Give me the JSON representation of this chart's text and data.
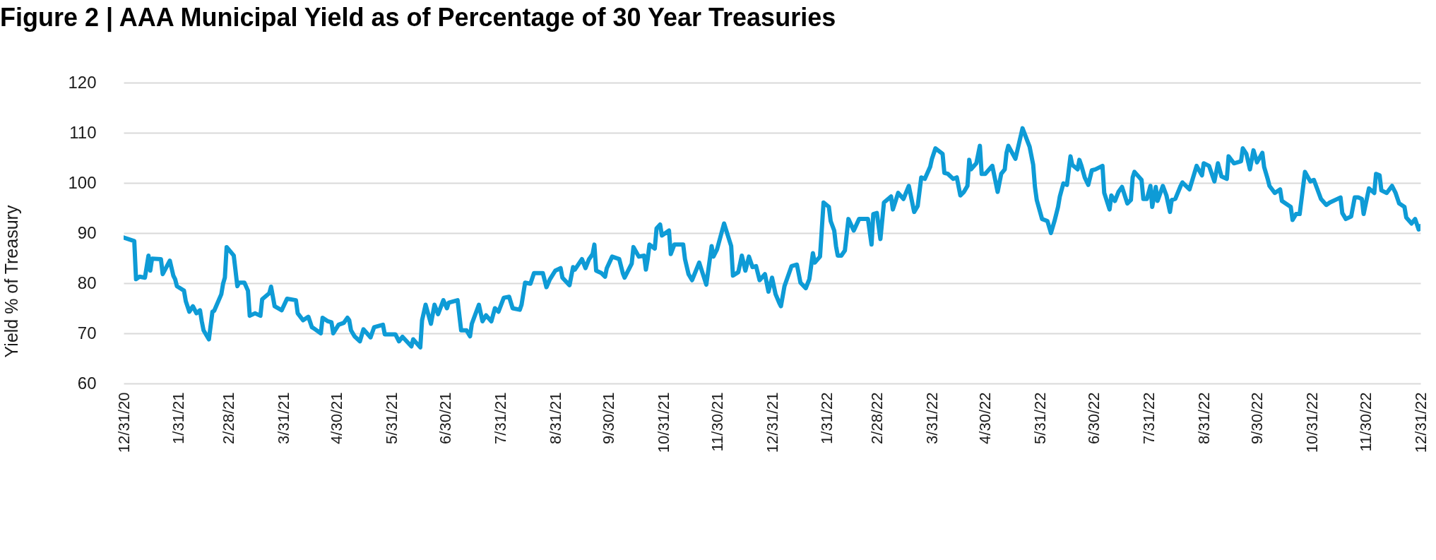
{
  "chart_data": {
    "type": "line",
    "title": "Figure 2 | AAA Municipal Yield as of Percentage of 30 Year Treasuries",
    "ylabel": "Yield % of Treasury",
    "x": [
      "2020-12-31",
      "2021-01-06",
      "2021-01-07",
      "2021-01-09",
      "2021-01-12",
      "2021-01-14",
      "2021-01-15",
      "2021-01-16",
      "2021-01-21",
      "2021-01-22",
      "2021-01-26",
      "2021-01-28",
      "2021-01-29",
      "2021-01-30",
      "2021-02-03",
      "2021-02-04",
      "2021-02-06",
      "2021-02-08",
      "2021-02-10",
      "2021-02-12",
      "2021-02-13",
      "2021-02-14",
      "2021-02-17",
      "2021-02-19",
      "2021-02-20",
      "2021-02-24",
      "2021-02-25",
      "2021-02-26",
      "2021-02-27",
      "2021-03-03",
      "2021-03-04",
      "2021-03-05",
      "2021-03-06",
      "2021-03-09",
      "2021-03-11",
      "2021-03-12",
      "2021-03-15",
      "2021-03-18",
      "2021-03-19",
      "2021-03-23",
      "2021-03-24",
      "2021-03-26",
      "2021-03-30",
      "2021-04-02",
      "2021-04-07",
      "2021-04-08",
      "2021-04-11",
      "2021-04-14",
      "2021-04-16",
      "2021-04-17",
      "2021-04-21",
      "2021-04-22",
      "2021-04-25",
      "2021-04-27",
      "2021-04-28",
      "2021-05-01",
      "2021-05-04",
      "2021-05-06",
      "2021-05-07",
      "2021-05-08",
      "2021-05-10",
      "2021-05-13",
      "2021-05-15",
      "2021-05-19",
      "2021-05-21",
      "2021-05-26",
      "2021-05-27",
      "2021-06-02",
      "2021-06-04",
      "2021-06-06",
      "2021-06-11",
      "2021-06-12",
      "2021-06-16",
      "2021-06-17",
      "2021-06-19",
      "2021-06-22",
      "2021-06-24",
      "2021-06-26",
      "2021-06-29",
      "2021-07-01",
      "2021-07-02",
      "2021-07-07",
      "2021-07-09",
      "2021-07-12",
      "2021-07-14",
      "2021-07-15",
      "2021-07-19",
      "2021-07-21",
      "2021-07-23",
      "2021-07-26",
      "2021-07-28",
      "2021-07-30",
      "2021-08-02",
      "2021-08-05",
      "2021-08-07",
      "2021-08-11",
      "2021-08-12",
      "2021-08-14",
      "2021-08-17",
      "2021-08-19",
      "2021-08-24",
      "2021-08-26",
      "2021-08-28",
      "2021-08-31",
      "2021-09-03",
      "2021-09-04",
      "2021-09-08",
      "2021-09-10",
      "2021-09-11",
      "2021-09-15",
      "2021-09-17",
      "2021-09-19",
      "2021-09-21",
      "2021-09-22",
      "2021-09-23",
      "2021-09-26",
      "2021-09-28",
      "2021-09-29",
      "2021-10-02",
      "2021-10-06",
      "2021-10-08",
      "2021-10-09",
      "2021-10-13",
      "2021-10-14",
      "2021-10-17",
      "2021-10-20",
      "2021-10-21",
      "2021-10-22",
      "2021-10-23",
      "2021-10-26",
      "2021-10-27",
      "2021-10-29",
      "2021-10-30",
      "2021-11-03",
      "2021-11-04",
      "2021-11-06",
      "2021-11-11",
      "2021-11-12",
      "2021-11-14",
      "2021-11-16",
      "2021-11-20",
      "2021-11-24",
      "2021-11-27",
      "2021-11-28",
      "2021-11-30",
      "2021-12-04",
      "2021-12-08",
      "2021-12-09",
      "2021-12-12",
      "2021-12-14",
      "2021-12-16",
      "2021-12-18",
      "2021-12-20",
      "2021-12-22",
      "2021-12-24",
      "2021-12-27",
      "2021-12-29",
      "2021-12-31",
      "2022-01-02",
      "2022-01-04",
      "2022-01-05",
      "2022-01-07",
      "2022-01-11",
      "2022-01-14",
      "2022-01-16",
      "2022-01-19",
      "2022-01-21",
      "2022-01-22",
      "2022-01-23",
      "2022-01-24",
      "2022-01-27",
      "2022-01-29",
      "2022-02-01",
      "2022-02-02",
      "2022-02-04",
      "2022-02-05",
      "2022-02-06",
      "2022-02-08",
      "2022-02-10",
      "2022-02-12",
      "2022-02-15",
      "2022-02-18",
      "2022-02-23",
      "2022-02-25",
      "2022-02-26",
      "2022-02-28",
      "2022-03-02",
      "2022-03-04",
      "2022-03-08",
      "2022-03-09",
      "2022-03-12",
      "2022-03-15",
      "2022-03-18",
      "2022-03-21",
      "2022-03-23",
      "2022-03-25",
      "2022-03-27",
      "2022-03-30",
      "2022-03-31",
      "2022-04-02",
      "2022-04-06",
      "2022-04-07",
      "2022-04-09",
      "2022-04-12",
      "2022-04-14",
      "2022-04-16",
      "2022-04-18",
      "2022-04-20",
      "2022-04-21",
      "2022-04-22",
      "2022-04-25",
      "2022-04-27",
      "2022-04-28",
      "2022-04-30",
      "2022-05-04",
      "2022-05-07",
      "2022-05-09",
      "2022-05-11",
      "2022-05-12",
      "2022-05-13",
      "2022-05-17",
      "2022-05-21",
      "2022-05-25",
      "2022-05-27",
      "2022-05-28",
      "2022-05-29",
      "2022-06-01",
      "2022-06-04",
      "2022-06-06",
      "2022-06-08",
      "2022-06-10",
      "2022-06-11",
      "2022-06-13",
      "2022-06-15",
      "2022-06-17",
      "2022-06-18",
      "2022-06-21",
      "2022-06-22",
      "2022-06-23",
      "2022-06-25",
      "2022-06-27",
      "2022-06-29",
      "2022-07-01",
      "2022-07-05",
      "2022-07-06",
      "2022-07-09",
      "2022-07-10",
      "2022-07-12",
      "2022-07-14",
      "2022-07-16",
      "2022-07-19",
      "2022-07-21",
      "2022-07-22",
      "2022-07-23",
      "2022-07-27",
      "2022-07-28",
      "2022-07-30",
      "2022-08-01",
      "2022-08-02",
      "2022-08-04",
      "2022-08-05",
      "2022-08-08",
      "2022-08-10",
      "2022-08-12",
      "2022-08-13",
      "2022-08-15",
      "2022-08-18",
      "2022-08-19",
      "2022-08-23",
      "2022-08-27",
      "2022-08-30",
      "2022-08-31",
      "2022-09-03",
      "2022-09-06",
      "2022-09-08",
      "2022-09-10",
      "2022-09-13",
      "2022-09-14",
      "2022-09-17",
      "2022-09-21",
      "2022-09-22",
      "2022-09-24",
      "2022-09-26",
      "2022-09-28",
      "2022-09-30",
      "2022-10-03",
      "2022-10-04",
      "2022-10-06",
      "2022-10-07",
      "2022-10-10",
      "2022-10-13",
      "2022-10-14",
      "2022-10-19",
      "2022-10-20",
      "2022-10-22",
      "2022-10-24",
      "2022-10-27",
      "2022-10-30",
      "2022-11-01",
      "2022-11-05",
      "2022-11-08",
      "2022-11-10",
      "2022-11-16",
      "2022-11-17",
      "2022-11-19",
      "2022-11-22",
      "2022-11-24",
      "2022-11-26",
      "2022-11-28",
      "2022-11-29",
      "2022-12-02",
      "2022-12-05",
      "2022-12-06",
      "2022-12-08",
      "2022-12-09",
      "2022-12-12",
      "2022-12-15",
      "2022-12-17",
      "2022-12-19",
      "2022-12-22",
      "2022-12-23",
      "2022-12-26",
      "2022-12-28",
      "2022-12-30",
      "2022-12-31"
    ],
    "series": [
      {
        "color": "#0e9bd6",
        "values": [
          89.1,
          88.4,
          80.8,
          81.3,
          81.1,
          85.5,
          82.5,
          84.9,
          84.8,
          81.8,
          84.5,
          81.5,
          80.8,
          79.4,
          78.5,
          76.4,
          74.3,
          75.4,
          74.0,
          74.6,
          72.4,
          70.6,
          68.8,
          74.3,
          74.5,
          77.8,
          79.9,
          81.1,
          87.2,
          85.5,
          82.5,
          79.4,
          80.1,
          80.1,
          78.5,
          73.5,
          74.0,
          73.5,
          76.8,
          78.0,
          79.3,
          75.4,
          74.6,
          76.9,
          76.6,
          74.0,
          72.6,
          73.3,
          71.2,
          71.0,
          70.0,
          73.1,
          72.4,
          72.2,
          70.0,
          71.7,
          72.1,
          73.1,
          72.6,
          70.6,
          69.4,
          68.4,
          70.8,
          69.2,
          71.2,
          71.7,
          69.8,
          69.8,
          68.4,
          69.3,
          67.4,
          68.8,
          67.2,
          72.6,
          75.7,
          71.9,
          75.7,
          73.8,
          76.6,
          75.0,
          76.1,
          76.6,
          70.6,
          70.6,
          69.4,
          71.9,
          75.7,
          72.4,
          73.6,
          72.4,
          75.0,
          74.3,
          77.1,
          77.3,
          75.0,
          74.7,
          75.7,
          80.1,
          79.9,
          82.0,
          82.0,
          79.2,
          80.8,
          82.5,
          83.0,
          81.1,
          79.6,
          83.2,
          82.7,
          84.8,
          83.0,
          84.8,
          85.8,
          87.7,
          82.5,
          82.0,
          81.3,
          83.0,
          85.3,
          84.8,
          82.0,
          81.1,
          83.9,
          87.2,
          85.3,
          85.5,
          82.7,
          84.8,
          87.7,
          86.9,
          90.9,
          91.7,
          89.5,
          90.5,
          85.8,
          87.7,
          87.7,
          84.8,
          81.8,
          80.6,
          84.1,
          79.7,
          87.4,
          85.3,
          86.7,
          91.9,
          87.4,
          81.5,
          82.2,
          85.5,
          82.5,
          85.3,
          83.2,
          83.4,
          80.6,
          81.8,
          78.3,
          81.1,
          77.8,
          76.1,
          75.4,
          79.4,
          83.4,
          83.7,
          80.1,
          79.0,
          80.8,
          83.4,
          86.0,
          84.1,
          85.3,
          96.1,
          95.2,
          92.4,
          90.5,
          87.4,
          85.5,
          85.5,
          86.5,
          92.8,
          90.5,
          92.8,
          92.8,
          87.7,
          93.8,
          94.0,
          88.8,
          96.1,
          97.3,
          94.7,
          98.0,
          96.8,
          99.4,
          94.2,
          95.4,
          101.1,
          100.8,
          103.2,
          104.8,
          106.9,
          105.8,
          102.0,
          101.8,
          100.8,
          101.1,
          97.5,
          98.2,
          99.4,
          104.6,
          102.7,
          103.9,
          107.4,
          101.8,
          101.8,
          103.4,
          98.2,
          101.8,
          102.7,
          106.0,
          107.4,
          104.8,
          110.9,
          107.2,
          103.6,
          99.2,
          96.6,
          92.8,
          92.4,
          90.0,
          92.4,
          95.2,
          97.3,
          99.9,
          99.6,
          105.3,
          103.6,
          102.7,
          104.6,
          103.6,
          101.1,
          99.6,
          102.5,
          102.7,
          103.4,
          98.0,
          94.7,
          97.5,
          96.4,
          98.2,
          99.2,
          95.9,
          96.6,
          101.1,
          102.2,
          100.6,
          96.8,
          96.8,
          99.4,
          95.2,
          99.2,
          96.4,
          99.4,
          97.5,
          94.2,
          96.6,
          96.8,
          99.4,
          100.1,
          98.7,
          103.4,
          101.5,
          103.9,
          103.4,
          100.3,
          103.9,
          101.3,
          100.8,
          105.3,
          103.9,
          104.3,
          106.9,
          105.8,
          102.7,
          106.5,
          104.1,
          106.0,
          103.2,
          100.8,
          99.4,
          98.0,
          98.7,
          96.4,
          95.2,
          92.6,
          93.8,
          93.8,
          102.2,
          100.3,
          100.6,
          96.8,
          95.6,
          96.1,
          97.1,
          94.0,
          92.8,
          93.3,
          97.1,
          97.1,
          96.8,
          93.8,
          98.9,
          98.0,
          101.8,
          101.5,
          98.5,
          98.0,
          99.4,
          98.0,
          95.9,
          95.2,
          93.1,
          91.9,
          92.8,
          90.7,
          91.4
        ]
      }
    ],
    "xlim": [
      "2020-12-31",
      "2022-12-31"
    ],
    "xticks": [
      {
        "value": "2020-12-31",
        "label": "12/31/20"
      },
      {
        "value": "2021-01-31",
        "label": "1/31/21"
      },
      {
        "value": "2021-02-28",
        "label": "2/28/21"
      },
      {
        "value": "2021-03-31",
        "label": "3/31/21"
      },
      {
        "value": "2021-04-30",
        "label": "4/30/21"
      },
      {
        "value": "2021-05-31",
        "label": "5/31/21"
      },
      {
        "value": "2021-06-30",
        "label": "6/30/21"
      },
      {
        "value": "2021-07-31",
        "label": "7/31/21"
      },
      {
        "value": "2021-08-31",
        "label": "8/31/21"
      },
      {
        "value": "2021-09-30",
        "label": "9/30/21"
      },
      {
        "value": "2021-10-31",
        "label": "10/31/21"
      },
      {
        "value": "2021-11-30",
        "label": "11/30/21"
      },
      {
        "value": "2021-12-31",
        "label": "12/31/21"
      },
      {
        "value": "2022-01-31",
        "label": "1/31/22"
      },
      {
        "value": "2022-02-28",
        "label": "2/28/22"
      },
      {
        "value": "2022-03-31",
        "label": "3/31/22"
      },
      {
        "value": "2022-04-30",
        "label": "4/30/22"
      },
      {
        "value": "2022-05-31",
        "label": "5/31/22"
      },
      {
        "value": "2022-06-30",
        "label": "6/30/22"
      },
      {
        "value": "2022-07-31",
        "label": "7/31/22"
      },
      {
        "value": "2022-08-31",
        "label": "8/31/22"
      },
      {
        "value": "2022-09-30",
        "label": "9/30/22"
      },
      {
        "value": "2022-10-31",
        "label": "10/31/22"
      },
      {
        "value": "2022-11-30",
        "label": "11/30/22"
      },
      {
        "value": "2022-12-31",
        "label": "12/31/22"
      }
    ],
    "ylim": [
      60,
      120
    ],
    "yticks": [
      60,
      70,
      80,
      90,
      100,
      110,
      120
    ],
    "grid": "y"
  }
}
